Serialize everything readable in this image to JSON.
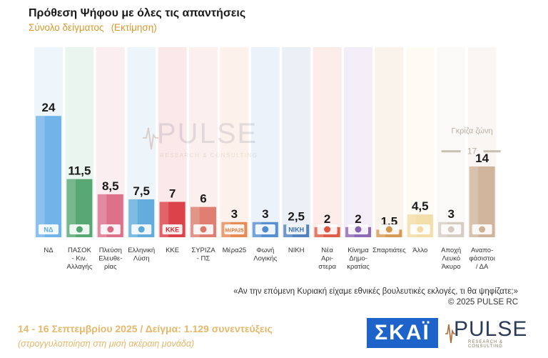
{
  "header": {
    "title": "Πρόθεση Ψήφου με όλες τις απαντήσεις",
    "subtitle": "Σύνολο δείγματος",
    "subtitle_note": "(Εκτίμηση)"
  },
  "watermark": {
    "brand": "PULSE",
    "tagline": "RESEARCH & CONSULTING"
  },
  "chart_data": {
    "type": "bar",
    "title": "Πρόθεση Ψήφου με όλες τις απαντήσεις",
    "subtitle": "Σύνολο δείγματος (Εκτίμηση)",
    "xlabel": "",
    "ylabel": "",
    "ylim": [
      0,
      27
    ],
    "categories": [
      [
        "ΝΔ"
      ],
      [
        "ΠΑΣΟΚ",
        "- Κιν.",
        "Αλλαγής"
      ],
      [
        "Πλεύση",
        "Ελευθε-",
        "ρίας"
      ],
      [
        "Ελληνική",
        "Λύση"
      ],
      [
        "ΚΚΕ"
      ],
      [
        "ΣΥΡΙΖΑ",
        "- ΠΣ"
      ],
      [
        "Μέρα25"
      ],
      [
        "Φωνή",
        "Λογικής"
      ],
      [
        "ΝΙΚΗ"
      ],
      [
        "Νέα",
        "Αρι-",
        "στερα"
      ],
      [
        "Κίνημα",
        "Δημο-",
        "κρατίας"
      ],
      [
        "Σπαρτιάτες"
      ],
      [
        "Άλλο"
      ],
      [
        "Αποχή",
        "Λευκό",
        "Άκυρο"
      ],
      [
        "Αναπο-",
        "φάσιστοι",
        "/ ΔΑ"
      ]
    ],
    "values": [
      24,
      11.5,
      8.5,
      7.5,
      7,
      6,
      3,
      3,
      2.5,
      2,
      2,
      1.5,
      4.5,
      3,
      14
    ],
    "value_labels": [
      "24",
      "11,5",
      "8,5",
      "7,5",
      "7",
      "6",
      "3",
      "3",
      "2,5",
      "2",
      "2",
      "1,5",
      "4,5",
      "3",
      "14"
    ],
    "bar_colors": [
      "#5aa8e6",
      "#3e9a5e",
      "#d65a7a",
      "#4a9fd6",
      "#d6242e",
      "#d96a5a",
      "#e07a3a",
      "#3d7fc9",
      "#3a6fb5",
      "#d8442c",
      "#7b52a8",
      "#d08a3a",
      "#f1d79a",
      "#cfc6b8",
      "#c9a98c"
    ],
    "logo_texts": [
      "ΝΔ",
      "",
      "",
      "",
      "ΚΚΕ",
      "",
      "ΜέΡΑ25",
      "",
      "ΝΙΚΗ",
      "",
      "",
      "",
      "",
      "",
      ""
    ],
    "annotation": {
      "label": "Γκρίζα ζώνη",
      "value_label": "17"
    },
    "grid": false,
    "legend": "none"
  },
  "footer": {
    "question": "«Αν την επόμενη Κυριακή είχαμε εθνικές βουλευτικές εκλογές, τι θα ψηφίζατε;»",
    "copyright": "©  2025  PULSE RC",
    "dates": "14 - 16 Σεπτεμβρίου 2025  /  Δείγμα:  1.129 συνεντεύξεις",
    "rounding": "(στρογγυλοποίηση στη μισή ακέραιη μονάδα)"
  },
  "logos": {
    "skai": "ΣΚΑΪ",
    "pulse": "PULSE",
    "pulse_tagline": "RESEARCH & CONSULTING"
  },
  "colors": {
    "accent": "#d99a2b",
    "footer_text": "#e6b76a",
    "skai_blue": "#1d63c9"
  }
}
